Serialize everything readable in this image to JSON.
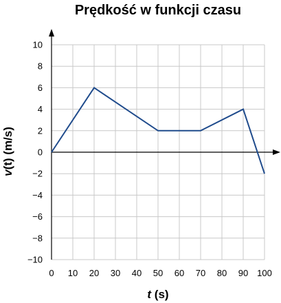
{
  "chart_data": {
    "type": "line",
    "title": "Prędkość w funkcji czasu",
    "xlabel_var": "t",
    "xlabel_unit": " (s)",
    "ylabel_var": "v",
    "ylabel_rest": "(t) (m/s)",
    "xlim": [
      0,
      100
    ],
    "ylim": [
      -10,
      10
    ],
    "x_ticks": [
      0,
      10,
      20,
      30,
      40,
      50,
      60,
      70,
      80,
      90,
      100
    ],
    "y_ticks": [
      10,
      8,
      6,
      4,
      2,
      0,
      -2,
      -4,
      -6,
      -8,
      -10
    ],
    "x_tick_labels": [
      "0",
      "10",
      "20",
      "30",
      "40",
      "50",
      "60",
      "70",
      "80",
      "90",
      "100"
    ],
    "y_tick_labels": [
      "10",
      "8",
      "6",
      "4",
      "2",
      "0",
      "−2",
      "−4",
      "−6",
      "−8",
      "−10"
    ],
    "grid": true,
    "series": [
      {
        "x": [
          0,
          20,
          50,
          70,
          90,
          100
        ],
        "y": [
          0,
          6,
          2,
          2,
          4,
          -2
        ]
      }
    ],
    "colors": {
      "line": "#1f4b8c",
      "grid": "#c8c8c8",
      "axis": "#000000"
    }
  }
}
